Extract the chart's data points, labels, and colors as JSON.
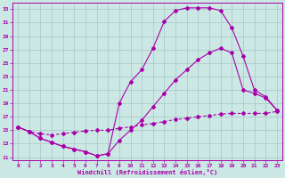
{
  "xlabel": "Windchill (Refroidissement éolien,°C)",
  "background_color": "#cce8e4",
  "grid_color": "#aacccc",
  "line_color": "#aa00aa",
  "xlim": [
    -0.5,
    23.5
  ],
  "ylim": [
    10.5,
    34
  ],
  "xticks": [
    0,
    1,
    2,
    3,
    4,
    5,
    6,
    7,
    8,
    9,
    10,
    11,
    12,
    13,
    14,
    15,
    16,
    17,
    18,
    19,
    20,
    21,
    22,
    23
  ],
  "yticks": [
    11,
    13,
    15,
    17,
    19,
    21,
    23,
    25,
    27,
    29,
    31,
    33
  ],
  "line1_x": [
    0,
    1,
    2,
    3,
    4,
    5,
    6,
    7,
    8,
    9,
    10,
    11,
    12,
    13,
    14,
    15,
    16,
    17,
    18,
    19,
    20,
    21,
    22,
    23
  ],
  "line1_y": [
    15.5,
    14.8,
    13.8,
    13.2,
    12.6,
    12.2,
    11.8,
    11.2,
    11.5,
    19.0,
    22.2,
    24.0,
    27.2,
    31.2,
    32.8,
    33.2,
    33.2,
    33.2,
    32.8,
    30.2,
    26.0,
    21.0,
    20.0,
    18.0
  ],
  "line2_x": [
    0,
    1,
    2,
    3,
    4,
    5,
    6,
    7,
    8,
    9,
    10,
    11,
    12,
    13,
    14,
    15,
    16,
    17,
    18,
    19,
    20,
    21,
    22,
    23
  ],
  "line2_y": [
    15.5,
    14.8,
    13.8,
    13.2,
    12.6,
    12.2,
    11.8,
    11.2,
    11.5,
    13.5,
    15.0,
    16.5,
    18.5,
    20.5,
    22.5,
    24.0,
    25.5,
    26.5,
    27.2,
    26.5,
    21.0,
    20.5,
    19.8,
    18.0
  ],
  "line3_x": [
    0,
    1,
    2,
    3,
    4,
    5,
    6,
    7,
    8,
    9,
    10,
    11,
    12,
    13,
    14,
    15,
    16,
    17,
    18,
    19,
    20,
    21,
    22,
    23
  ],
  "line3_y": [
    15.5,
    14.8,
    14.5,
    14.3,
    14.5,
    14.7,
    14.9,
    15.0,
    15.0,
    15.3,
    15.5,
    15.8,
    16.0,
    16.3,
    16.6,
    16.8,
    17.0,
    17.2,
    17.4,
    17.5,
    17.5,
    17.5,
    17.5,
    17.8
  ]
}
